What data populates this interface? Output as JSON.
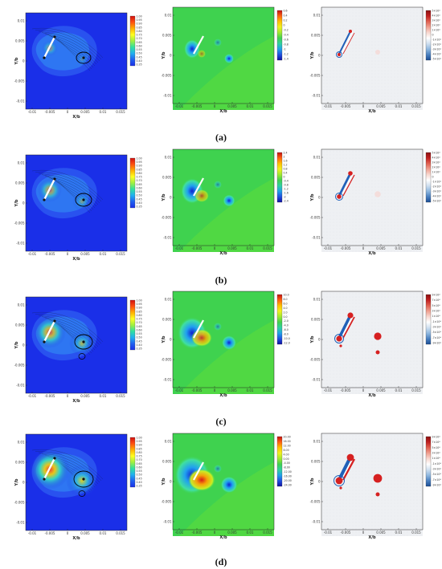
{
  "captions": [
    "(a)",
    "(b)",
    "(c)",
    "(d)"
  ],
  "axes": {
    "xlabel": "X/b",
    "ylabel": "Y/b",
    "xticks": [
      "-0.01",
      "-0.005",
      "0",
      "0.005",
      "0.01",
      "0.015"
    ],
    "yticks": [
      "0.01",
      "0.005",
      "0",
      "-0.005",
      "-0.01"
    ]
  },
  "colorbars": {
    "col1": [
      [
        "1.00",
        "0.95",
        "0.90",
        "0.85",
        "0.80",
        "0.75",
        "0.70",
        "0.65",
        "0.60",
        "0.55",
        "0.50",
        "0.45",
        "0.40",
        "0.35"
      ],
      [
        "1.00",
        "0.95",
        "0.90",
        "0.85",
        "0.80",
        "0.75",
        "0.70",
        "0.65",
        "0.60",
        "0.55",
        "0.50",
        "0.45",
        "0.40",
        "0.35"
      ],
      [
        "1.00",
        "0.95",
        "0.90",
        "0.85",
        "0.80",
        "0.75",
        "0.70",
        "0.65",
        "0.60",
        "0.55",
        "0.50",
        "0.45",
        "0.40",
        "0.35"
      ],
      [
        "1.00",
        "0.95",
        "0.90",
        "0.85",
        "0.80",
        "0.75",
        "0.70",
        "0.65",
        "0.60",
        "0.55",
        "0.50",
        "0.45",
        "0.40",
        "0.35"
      ]
    ],
    "col2": [
      [
        "0.6",
        "0.4",
        "0.2",
        "0",
        "-0.2",
        "-0.4",
        "-0.6",
        "-0.8",
        "-1",
        "-1.2",
        "-1.4"
      ],
      [
        "2.4",
        "2",
        "1.6",
        "1.2",
        "0.8",
        "0.4",
        "0",
        "-0.4",
        "-0.8",
        "-1.2",
        "-1.6",
        "-2",
        "-2.4"
      ],
      [
        "10.0",
        "8.0",
        "6.0",
        "4.0",
        "2.0",
        "0.0",
        "-2.0",
        "-4.0",
        "-6.0",
        "-8.0",
        "-10.0",
        "-12.0"
      ],
      [
        "20.00",
        "16.00",
        "12.00",
        "8.00",
        "4.00",
        "0.00",
        "-4.00",
        "-8.00",
        "-12.00",
        "-16.00",
        "-20.00",
        "-24.00"
      ]
    ],
    "col3": [
      [
        "5×10⁴",
        "4×10⁴",
        "3×10⁴",
        "2×10⁴",
        "1×10⁴",
        "0",
        "-1×10⁴",
        "-2×10⁴",
        "-3×10⁴",
        "-4×10⁴",
        "-5×10⁴"
      ],
      [
        "5×10⁴",
        "4×10⁴",
        "3×10⁴",
        "2×10⁴",
        "1×10⁴",
        "0",
        "-1×10⁴",
        "-2×10⁴",
        "-3×10⁴",
        "-4×10⁴",
        "-5×10⁴"
      ],
      [
        "9×10⁴",
        "7×10⁴",
        "5×10⁴",
        "3×10⁴",
        "1×10⁴",
        "-1×10⁴",
        "-3×10⁴",
        "-5×10⁴",
        "-7×10⁴",
        "-9×10⁴"
      ],
      [
        "9×10⁴",
        "7×10⁴",
        "5×10⁴",
        "3×10⁴",
        "1×10⁴",
        "-1×10⁴",
        "-3×10⁴",
        "-5×10⁴",
        "-7×10⁴",
        "-9×10⁴"
      ]
    ]
  },
  "colors": {
    "col1_bg": "#1a2fe8",
    "col2_bg": "#3fd24f",
    "col3_bg": "#eef0f3",
    "vortex_red": "#d62020",
    "vortex_blue": "#2060b8"
  }
}
